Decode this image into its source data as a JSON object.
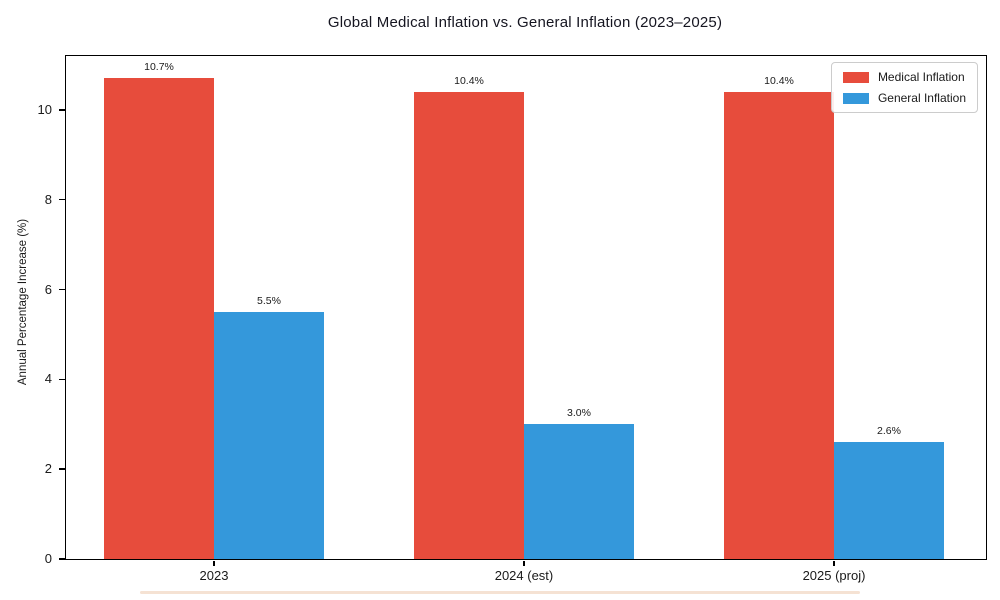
{
  "chart_data": {
    "type": "bar",
    "title": "Global Medical Inflation vs. General Inflation (2023–2025)",
    "xlabel": "",
    "ylabel": "Annual Percentage Increase (%)",
    "categories": [
      "2023",
      "2024 (est)",
      "2025 (proj)"
    ],
    "series": [
      {
        "name": "Medical Inflation",
        "color": "#E74C3C",
        "values": [
          10.7,
          10.4,
          10.4
        ],
        "labels": [
          "10.7%",
          "10.4%",
          "10.4%"
        ]
      },
      {
        "name": "General Inflation",
        "color": "#3498DB",
        "values": [
          5.5,
          3.0,
          2.6
        ],
        "labels": [
          "5.5%",
          "3.0%",
          "2.6%"
        ]
      }
    ],
    "ylim": [
      0,
      11.2
    ],
    "yticks": [
      0,
      2,
      4,
      6,
      8,
      10
    ],
    "grid": false,
    "legend_position": "upper right"
  }
}
